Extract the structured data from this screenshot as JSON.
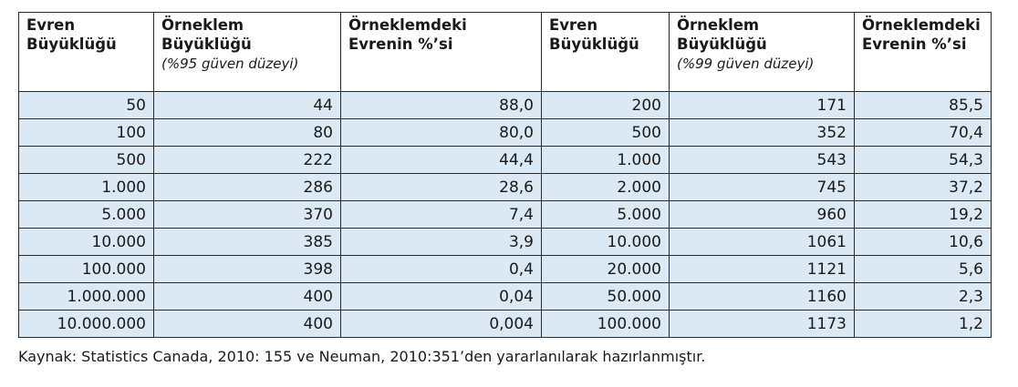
{
  "headers": [
    {
      "line1": "Evren",
      "line2": "Büyüklüğü",
      "sub": ""
    },
    {
      "line1": "Örneklem",
      "line2": "Büyüklüğü",
      "sub": "(%95 güven düzeyi)"
    },
    {
      "line1": "Örneklemdeki",
      "line2": "Evrenin %’si",
      "sub": ""
    },
    {
      "line1": "Evren",
      "line2": "Büyüklüğü",
      "sub": ""
    },
    {
      "line1": "Örneklem",
      "line2": "Büyüklüğü",
      "sub": "(%99 güven düzeyi)"
    },
    {
      "line1": "Örneklemdeki",
      "line2": "Evrenin %’si",
      "sub": ""
    }
  ],
  "rows": [
    [
      "50",
      "44",
      "88,0",
      "200",
      "171",
      "85,5"
    ],
    [
      "100",
      "80",
      "80,0",
      "500",
      "352",
      "70,4"
    ],
    [
      "500",
      "222",
      "44,4",
      "1.000",
      "543",
      "54,3"
    ],
    [
      "1.000",
      "286",
      "28,6",
      "2.000",
      "745",
      "37,2"
    ],
    [
      "5.000",
      "370",
      "7,4",
      "5.000",
      "960",
      "19,2"
    ],
    [
      "10.000",
      "385",
      "3,9",
      "10.000",
      "1061",
      "10,6"
    ],
    [
      "100.000",
      "398",
      "0,4",
      "20.000",
      "1121",
      "5,6"
    ],
    [
      "1.000.000",
      "400",
      "0,04",
      "50.000",
      "1160",
      "2,3"
    ],
    [
      "10.000.000",
      "400",
      "0,004",
      "100.000",
      "1173",
      "1,2"
    ]
  ],
  "source": "Kaynak: Statistics Canada, 2010: 155 ve Neuman, 2010:351’den yararlanılarak hazırlanmıştır.",
  "colors": {
    "cell_fill": "#dbe9f4",
    "border": "#2b2b2b"
  }
}
